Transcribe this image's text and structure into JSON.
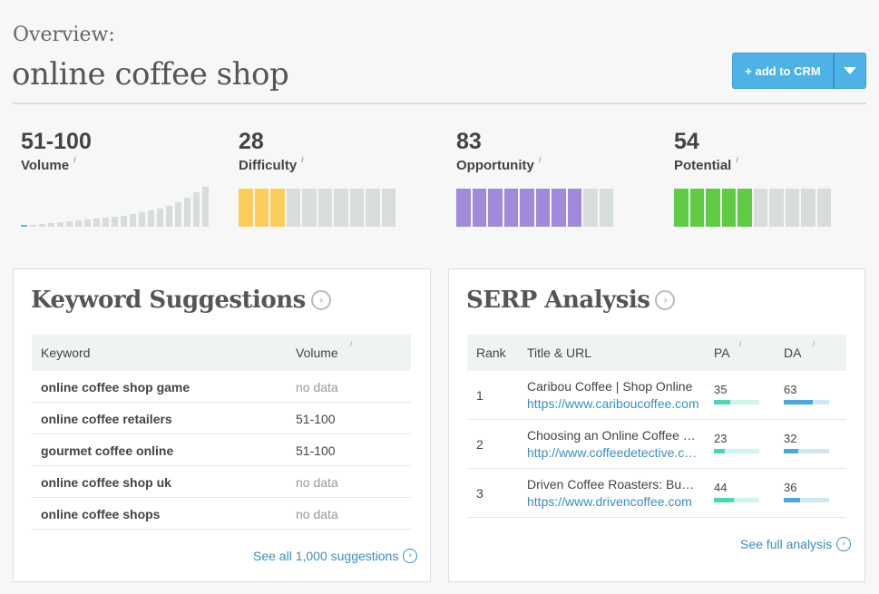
{
  "header": {
    "overview_label": "Overview:",
    "keyword": "online coffee shop",
    "crm_button": "+ add to CRM"
  },
  "metrics": {
    "volume": {
      "value": "51-100",
      "label": "Volume",
      "info": "i"
    },
    "difficulty": {
      "value": "28",
      "label": "Difficulty",
      "info": "i",
      "filled_segments": 3,
      "total_segments": 10,
      "color": "#fccd5d"
    },
    "opportunity": {
      "value": "83",
      "label": "Opportunity",
      "info": "i",
      "filled_segments": 8,
      "total_segments": 10,
      "color": "#a08ad9"
    },
    "potential": {
      "value": "54",
      "label": "Potential",
      "info": "i",
      "filled_segments": 5,
      "total_segments": 10,
      "color": "#5fcb45"
    }
  },
  "volume_histogram": [
    0.05,
    0.05,
    0.07,
    0.08,
    0.1,
    0.12,
    0.14,
    0.16,
    0.18,
    0.2,
    0.23,
    0.26,
    0.29,
    0.33,
    0.37,
    0.42,
    0.48,
    0.56,
    0.66,
    0.8,
    0.92
  ],
  "keyword_suggestions": {
    "title": "Keyword Suggestions",
    "col_keyword": "Keyword",
    "col_volume": "Volume",
    "info": "i",
    "rows": [
      {
        "keyword": "online coffee shop game",
        "volume": "no data"
      },
      {
        "keyword": "online coffee retailers",
        "volume": "51-100"
      },
      {
        "keyword": "gourmet coffee online",
        "volume": "51-100"
      },
      {
        "keyword": "online coffee shop uk",
        "volume": "no data"
      },
      {
        "keyword": "online coffee shops",
        "volume": "no data"
      }
    ],
    "see_all": "See all 1,000 suggestions"
  },
  "serp_analysis": {
    "title": "SERP Analysis",
    "col_rank": "Rank",
    "col_title": "Title & URL",
    "col_pa": "PA",
    "col_da": "DA",
    "info": "i",
    "rows": [
      {
        "rank": "1",
        "title": "Caribou Coffee | Shop Online",
        "url": "https://www.cariboucoffee.com",
        "pa": "35",
        "da": "63"
      },
      {
        "rank": "2",
        "title": "Choosing an Online Coffee Store",
        "url": "http://www.coffeedetective.com",
        "pa": "23",
        "da": "32"
      },
      {
        "rank": "3",
        "title": "Driven Coffee Roasters: Buy Coffee",
        "url": "https://www.drivencoffee.com",
        "pa": "44",
        "da": "36"
      }
    ],
    "see_full": "See full analysis",
    "pa_color": "#4ad6b8",
    "da_color": "#4aa8e0"
  }
}
